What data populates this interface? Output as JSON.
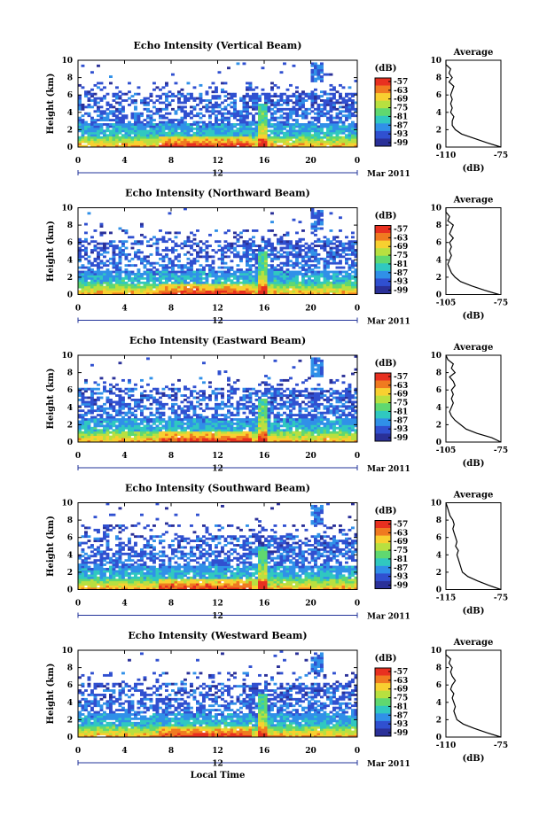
{
  "chart_data": [
    {
      "type": "heatmap",
      "title": "Echo Intensity (Vertical Beam)",
      "ylabel": "Height (km)",
      "x_ticks": [
        "0",
        "4",
        "8",
        "12",
        "16",
        "20",
        "0"
      ],
      "y_ticks": [
        "0",
        "2",
        "4",
        "6",
        "8",
        "10"
      ],
      "xlim": [
        0,
        24
      ],
      "ylim": [
        0,
        10
      ],
      "date_day": "12",
      "date_month": "Mar 2011",
      "colorbar_unit": "(dB)",
      "colorbar_ticks": [
        "-57",
        "-63",
        "-69",
        "-75",
        "-81",
        "-87",
        "-93",
        "-99"
      ],
      "colorbar_colors": [
        "#e83020",
        "#f07a20",
        "#f8d030",
        "#b8e040",
        "#60d870",
        "#30c8c0",
        "#3090e8",
        "#3050d0",
        "#2a3098"
      ],
      "profile": {
        "title": "Average",
        "xlabel": "(dB)",
        "x_ticks": [
          "-110",
          "-75"
        ],
        "xlim": [
          -110,
          -75
        ],
        "y_ticks": [
          "0",
          "2",
          "4",
          "6",
          "8",
          "10"
        ],
        "heights": [
          0,
          0.5,
          1,
          1.5,
          2,
          2.5,
          3,
          3.5,
          4,
          4.5,
          5,
          5.5,
          6,
          6.5,
          7,
          7.5,
          8,
          8.5,
          9,
          9.5,
          10
        ],
        "values": [
          -75,
          -84,
          -92,
          -100,
          -104,
          -106,
          -106,
          -105,
          -107,
          -106,
          -107,
          -106,
          -107,
          -106,
          -105,
          -108,
          -106,
          -108,
          -107,
          -110,
          -110
        ]
      }
    },
    {
      "type": "heatmap",
      "title": "Echo Intensity (Northward Beam)",
      "ylabel": "Height (km)",
      "x_ticks": [
        "0",
        "4",
        "8",
        "12",
        "16",
        "20",
        "0"
      ],
      "y_ticks": [
        "0",
        "2",
        "4",
        "6",
        "8",
        "10"
      ],
      "xlim": [
        0,
        24
      ],
      "ylim": [
        0,
        10
      ],
      "date_day": "12",
      "date_month": "Mar 2011",
      "colorbar_unit": "(dB)",
      "colorbar_ticks": [
        "-57",
        "-63",
        "-69",
        "-75",
        "-81",
        "-87",
        "-93",
        "-99"
      ],
      "colorbar_colors": [
        "#e83020",
        "#f07a20",
        "#f8d030",
        "#b8e040",
        "#60d870",
        "#30c8c0",
        "#3090e8",
        "#3050d0",
        "#2a3098"
      ],
      "profile": {
        "title": "Average",
        "xlabel": "(dB)",
        "x_ticks": [
          "-105",
          "-75"
        ],
        "xlim": [
          -105,
          -75
        ],
        "y_ticks": [
          "0",
          "2",
          "4",
          "6",
          "8",
          "10"
        ],
        "heights": [
          0,
          0.5,
          1,
          1.5,
          2,
          2.5,
          3,
          3.5,
          4,
          4.5,
          5,
          5.5,
          6,
          6.5,
          7,
          7.5,
          8,
          8.5,
          9,
          9.5,
          10
        ],
        "values": [
          -76,
          -84,
          -91,
          -97,
          -100,
          -102,
          -103,
          -104,
          -103,
          -102,
          -103,
          -102,
          -103,
          -101,
          -103,
          -102,
          -101,
          -104,
          -103,
          -105,
          -105
        ]
      }
    },
    {
      "type": "heatmap",
      "title": "Echo Intensity (Eastward Beam)",
      "ylabel": "Height (km)",
      "x_ticks": [
        "0",
        "4",
        "8",
        "12",
        "16",
        "20",
        "0"
      ],
      "y_ticks": [
        "0",
        "2",
        "4",
        "6",
        "8",
        "10"
      ],
      "xlim": [
        0,
        24
      ],
      "ylim": [
        0,
        10
      ],
      "date_day": "12",
      "date_month": "Mar 2011",
      "colorbar_unit": "(dB)",
      "colorbar_ticks": [
        "-57",
        "-63",
        "-69",
        "-75",
        "-81",
        "-87",
        "-93",
        "-99"
      ],
      "colorbar_colors": [
        "#e83020",
        "#f07a20",
        "#f8d030",
        "#b8e040",
        "#60d870",
        "#30c8c0",
        "#3090e8",
        "#3050d0",
        "#2a3098"
      ],
      "profile": {
        "title": "Average",
        "xlabel": "(dB)",
        "x_ticks": [
          "-105",
          "-75"
        ],
        "xlim": [
          -105,
          -75
        ],
        "y_ticks": [
          "0",
          "2",
          "4",
          "6",
          "8",
          "10"
        ],
        "heights": [
          0,
          0.5,
          1,
          1.5,
          2,
          2.5,
          3,
          3.5,
          4,
          4.5,
          5,
          5.5,
          6,
          6.5,
          7,
          7.5,
          8,
          8.5,
          9,
          9.5,
          10
        ],
        "values": [
          -75,
          -80,
          -88,
          -94,
          -97,
          -100,
          -102,
          -103,
          -102,
          -101,
          -102,
          -101,
          -102,
          -100,
          -101,
          -103,
          -100,
          -102,
          -101,
          -104,
          -105
        ]
      }
    },
    {
      "type": "heatmap",
      "title": "Echo Intensity (Southward Beam)",
      "ylabel": "Height (km)",
      "x_ticks": [
        "0",
        "4",
        "8",
        "12",
        "16",
        "20",
        "0"
      ],
      "y_ticks": [
        "0",
        "2",
        "4",
        "6",
        "8",
        "10"
      ],
      "xlim": [
        0,
        24
      ],
      "ylim": [
        0,
        10
      ],
      "date_day": "12",
      "date_month": "Mar 2011",
      "colorbar_unit": "(dB)",
      "colorbar_ticks": [
        "-57",
        "-63",
        "-69",
        "-75",
        "-81",
        "-87",
        "-93",
        "-99"
      ],
      "colorbar_colors": [
        "#e83020",
        "#f07a20",
        "#f8d030",
        "#b8e040",
        "#60d870",
        "#30c8c0",
        "#3090e8",
        "#3050d0",
        "#2a3098"
      ],
      "profile": {
        "title": "Average",
        "xlabel": "(dB)",
        "x_ticks": [
          "-115",
          "-75"
        ],
        "xlim": [
          -115,
          -75
        ],
        "y_ticks": [
          "0",
          "2",
          "4",
          "6",
          "8",
          "10"
        ],
        "heights": [
          0,
          0.5,
          1,
          1.5,
          2,
          2.5,
          3,
          3.5,
          4,
          4.5,
          5,
          5.5,
          6,
          6.5,
          7,
          7.5,
          8,
          8.5,
          9,
          9.5,
          10
        ],
        "values": [
          -75,
          -84,
          -92,
          -99,
          -103,
          -104,
          -105,
          -106,
          -107,
          -106,
          -108,
          -107,
          -108,
          -109,
          -110,
          -109,
          -110,
          -112,
          -113,
          -114,
          -115
        ]
      }
    },
    {
      "type": "heatmap",
      "title": "Echo Intensity (Westward Beam)",
      "ylabel": "Height (km)",
      "xlabel": "Local Time",
      "x_ticks": [
        "0",
        "4",
        "8",
        "12",
        "16",
        "20",
        "0"
      ],
      "y_ticks": [
        "0",
        "2",
        "4",
        "6",
        "8",
        "10"
      ],
      "xlim": [
        0,
        24
      ],
      "ylim": [
        0,
        10
      ],
      "date_day": "12",
      "date_month": "Mar 2011",
      "colorbar_unit": "(dB)",
      "colorbar_ticks": [
        "-57",
        "-63",
        "-69",
        "-75",
        "-81",
        "-87",
        "-93",
        "-99"
      ],
      "colorbar_colors": [
        "#e83020",
        "#f07a20",
        "#f8d030",
        "#b8e040",
        "#60d870",
        "#30c8c0",
        "#3090e8",
        "#3050d0",
        "#2a3098"
      ],
      "profile": {
        "title": "Average",
        "xlabel": "(dB)",
        "x_ticks": [
          "-110",
          "-75"
        ],
        "xlim": [
          -110,
          -75
        ],
        "y_ticks": [
          "0",
          "2",
          "4",
          "6",
          "8",
          "10"
        ],
        "heights": [
          0,
          0.5,
          1,
          1.5,
          2,
          2.5,
          3,
          3.5,
          4,
          4.5,
          5,
          5.5,
          6,
          6.5,
          7,
          7.5,
          8,
          8.5,
          9,
          9.5,
          10
        ],
        "values": [
          -75,
          -84,
          -92,
          -99,
          -103,
          -104,
          -105,
          -104,
          -105,
          -106,
          -105,
          -107,
          -106,
          -104,
          -106,
          -107,
          -106,
          -108,
          -107,
          -110,
          -110
        ]
      }
    }
  ]
}
